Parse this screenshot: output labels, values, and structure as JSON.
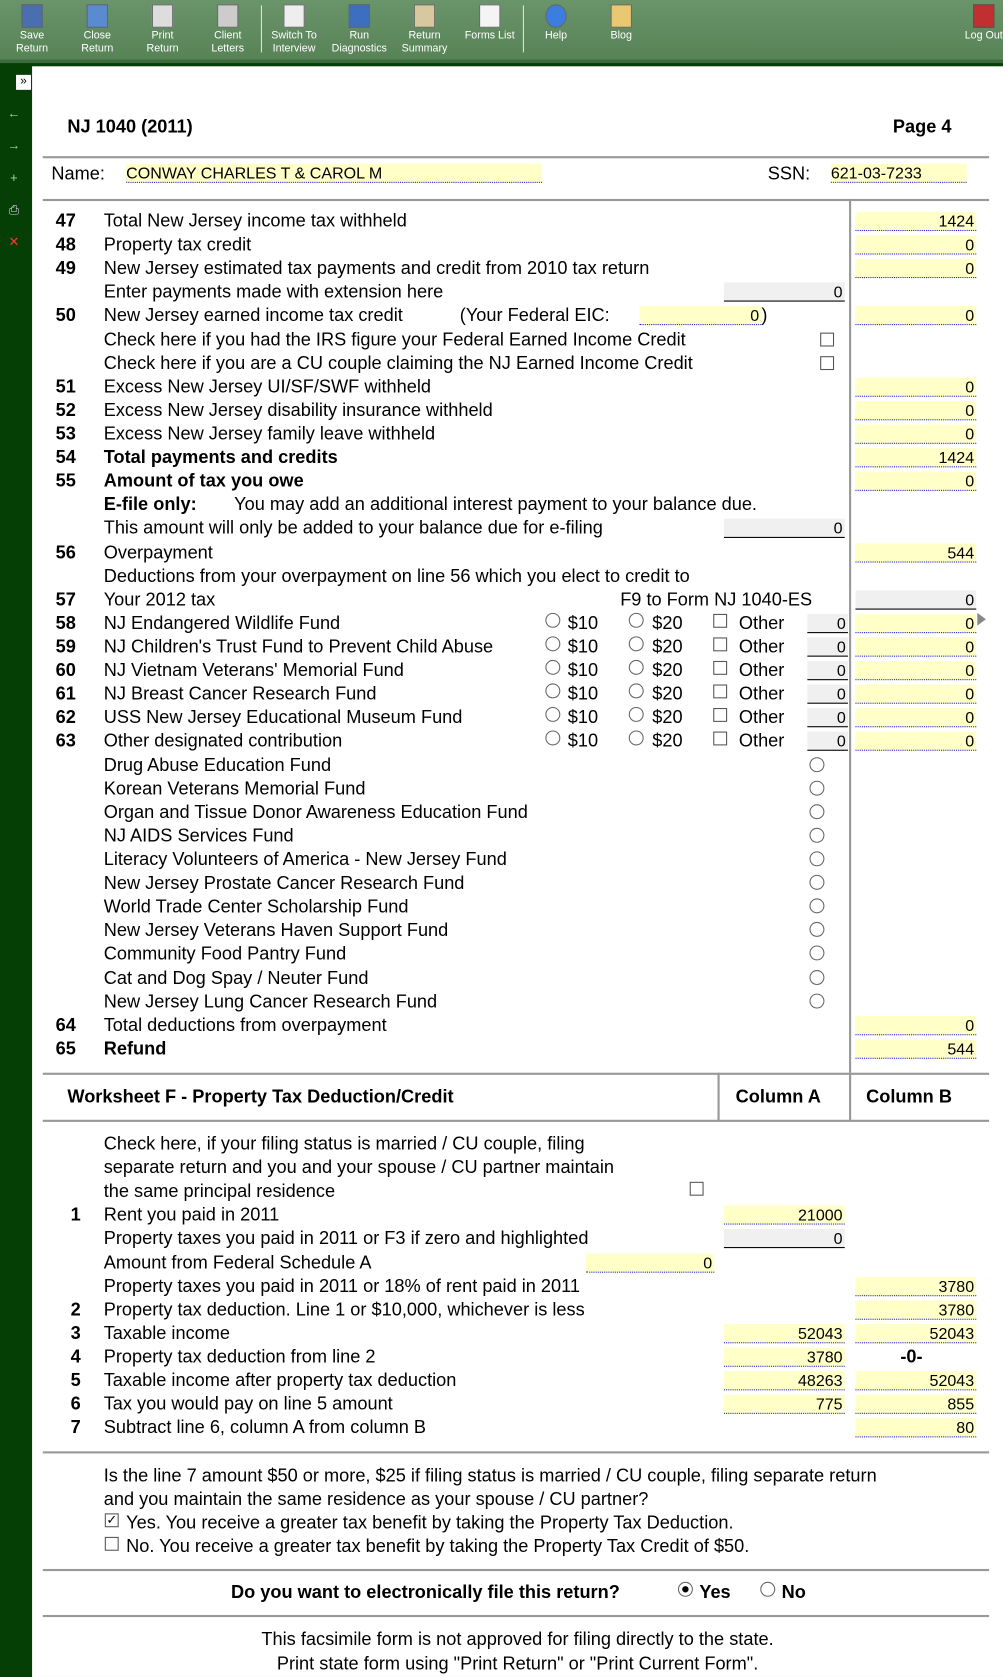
{
  "toolbar": {
    "buttons": [
      {
        "label1": "Save",
        "label2": "Return",
        "icon": "floppy-disk-icon"
      },
      {
        "label1": "Close",
        "label2": "Return",
        "icon": "close-file-icon"
      },
      {
        "label1": "Print",
        "label2": "Return",
        "icon": "printer-icon"
      },
      {
        "label1": "Client",
        "label2": "Letters",
        "icon": "envelope-icon"
      },
      {
        "label1": "Switch To",
        "label2": "Interview",
        "icon": "interview-icon"
      },
      {
        "label1": "Run",
        "label2": "Diagnostics",
        "icon": "diagnostics-icon"
      },
      {
        "label1": "Return",
        "label2": "Summary",
        "icon": "clipboard-icon"
      },
      {
        "label1": "Forms List",
        "label2": "",
        "icon": "list-icon"
      },
      {
        "label1": "Help",
        "label2": "",
        "icon": "help-icon"
      },
      {
        "label1": "Blog",
        "label2": "",
        "icon": "scroll-icon"
      }
    ],
    "logout": "Log Out"
  },
  "sidebar": {
    "expand": "»",
    "icons": [
      "back-arrow-icon",
      "forward-arrow-icon",
      "add-icon",
      "print-icon",
      "delete-icon"
    ]
  },
  "header": {
    "title": "NJ 1040 (2011)",
    "page": "Page 4",
    "name_label": "Name:",
    "name": "CONWAY CHARLES T & CAROL M",
    "ssn_label": "SSN:",
    "ssn": "621-03-7233"
  },
  "lines": [
    {
      "num": "47",
      "label": "Total New Jersey income tax withheld",
      "right": "1424"
    },
    {
      "num": "48",
      "label": "Property tax credit",
      "right": "0"
    },
    {
      "num": "49",
      "label": "New Jersey estimated tax payments and credit from 2010 tax return",
      "right": "0"
    },
    {
      "label": "Enter payments made with extension here",
      "mid": "0"
    },
    {
      "num": "50",
      "label": "New Jersey earned income tax credit",
      "extra": "(Your Federal EIC:",
      "eic": "0",
      "eic_close": ")",
      "right": "0"
    },
    {
      "label": "Check here if you had the IRS figure your Federal Earned Income Credit",
      "checkbox": false
    },
    {
      "label": "Check here if you are a CU couple claiming the NJ Earned Income Credit",
      "checkbox": false
    },
    {
      "num": "51",
      "label": "Excess New Jersey UI/SF/SWF withheld",
      "right": "0"
    },
    {
      "num": "52",
      "label": "Excess New Jersey disability insurance withheld",
      "right": "0"
    },
    {
      "num": "53",
      "label": "Excess New Jersey family leave withheld",
      "right": "0"
    },
    {
      "num": "54",
      "label": "Total payments and credits",
      "bold": true,
      "right": "1424"
    },
    {
      "num": "55",
      "label": "Amount of tax you owe",
      "bold": true,
      "right": "0"
    },
    {
      "prefix": "E-file only:",
      "label": "You may add an additional interest payment to your balance due."
    },
    {
      "label": "This amount will only be added to your balance due for e-filing",
      "mid": "0"
    },
    {
      "num": "56",
      "label": "Overpayment",
      "right": "544"
    },
    {
      "label": "Deductions from your overpayment on line 56 which you elect to credit to"
    },
    {
      "num": "57",
      "label": "Your 2012 tax",
      "note": "F9 to Form NJ 1040-ES",
      "right_grey": "0"
    },
    {
      "num": "58",
      "label": "NJ Endangered Wildlife Fund",
      "opt10": "$10",
      "opt20": "$20",
      "other": "Other",
      "other_amount": "0",
      "right": "0"
    },
    {
      "num": "59",
      "label": "NJ Children's Trust Fund to Prevent Child Abuse",
      "opt10": "$10",
      "opt20": "$20",
      "other": "Other",
      "other_amount": "0",
      "right": "0"
    },
    {
      "num": "60",
      "label": "NJ Vietnam Veterans' Memorial Fund",
      "opt10": "$10",
      "opt20": "$20",
      "other": "Other",
      "other_amount": "0",
      "right": "0"
    },
    {
      "num": "61",
      "label": "NJ Breast Cancer Research Fund",
      "opt10": "$10",
      "opt20": "$20",
      "other": "Other",
      "other_amount": "0",
      "right": "0"
    },
    {
      "num": "62",
      "label": "USS New Jersey Educational Museum Fund",
      "opt10": "$10",
      "opt20": "$20",
      "other": "Other",
      "other_amount": "0",
      "right": "0"
    },
    {
      "num": "63",
      "label": "Other designated contribution",
      "opt10": "$10",
      "opt20": "$20",
      "other": "Other",
      "other_amount": "0",
      "right": "0"
    },
    {
      "label": "Drug Abuse Education Fund",
      "radio": false
    },
    {
      "label": "Korean Veterans Memorial Fund",
      "radio": false
    },
    {
      "label": "Organ and Tissue Donor Awareness Education Fund",
      "radio": false
    },
    {
      "label": "NJ AIDS Services Fund",
      "radio": false
    },
    {
      "label": "Literacy Volunteers of America - New Jersey Fund",
      "radio": false
    },
    {
      "label": "New Jersey Prostate Cancer Research Fund",
      "radio": false
    },
    {
      "label": "World Trade Center Scholarship Fund",
      "radio": false
    },
    {
      "label": "New Jersey Veterans  Haven Support Fund",
      "radio": false
    },
    {
      "label": "Community Food Pantry Fund",
      "radio": false
    },
    {
      "label": "Cat and Dog Spay / Neuter Fund",
      "radio": false
    },
    {
      "label": "New Jersey Lung Cancer Research Fund",
      "radio": false
    },
    {
      "num": "64",
      "label": "Total deductions from overpayment",
      "right": "0"
    },
    {
      "num": "65",
      "label": "Refund",
      "bold": true,
      "right": "544"
    }
  ],
  "worksheet": {
    "title": "Worksheet F - Property Tax Deduction/Credit",
    "col_a": "Column A",
    "col_b": "Column B",
    "rows": [
      {
        "label": "Check here,  if your filing status is married / CU couple,  filing"
      },
      {
        "label": "separate return and you and your spouse / CU partner maintain"
      },
      {
        "label": "the same principal residence",
        "checkbox": false
      },
      {
        "num": "1",
        "label": "Rent you paid in 2011",
        "a": "21000"
      },
      {
        "label": "Property taxes you paid in 2011 or F3 if zero and highlighted",
        "a_grey": "0"
      },
      {
        "label": "Amount from Federal Schedule A",
        "inline": "0"
      },
      {
        "label": "Property taxes you paid in 2011 or 18% of rent paid in 2011",
        "b": "3780"
      },
      {
        "num": "2",
        "label": "Property tax deduction.   Line 1 or $10,000,  whichever is less",
        "b": "3780"
      },
      {
        "num": "3",
        "label": "Taxable income",
        "a": "52043",
        "b": "52043"
      },
      {
        "num": "4",
        "label": "Property tax deduction from line 2",
        "a": "3780",
        "b_text": "-0-"
      },
      {
        "num": "5",
        "label": "Taxable income after property tax deduction",
        "a": "48263",
        "b": "52043"
      },
      {
        "num": "6",
        "label": "Tax you would pay on line 5 amount",
        "a": "775",
        "b": "855"
      },
      {
        "num": "7",
        "label": "Subtract line 6,  column A from column B",
        "b": "80"
      }
    ],
    "question1": "Is the line 7 amount $50 or more,  $25 if filing status is married / CU couple,  filing separate return",
    "question2": "and you maintain the same residence as your spouse / CU partner?",
    "yes_checked": true,
    "yes_label": "Yes.   You receive a greater tax benefit by taking the Property Tax Deduction.",
    "no_checked": false,
    "no_label": "No.   You receive a greater tax benefit by taking the Property Tax Credit of $50."
  },
  "efile": {
    "question": "Do you want to electronically file this return?",
    "yes": "Yes",
    "no": "No",
    "selected": "Yes"
  },
  "footer": {
    "line1": "This facsimile form is not approved for filing directly to the state.",
    "line2": "Print state form using \"Print Return\" or \"Print Current Form\"."
  },
  "colors": {
    "toolbar": "#5e8a5e",
    "background": "#063f06",
    "field": "#ffffc8",
    "field_underline": "#2020d0"
  }
}
